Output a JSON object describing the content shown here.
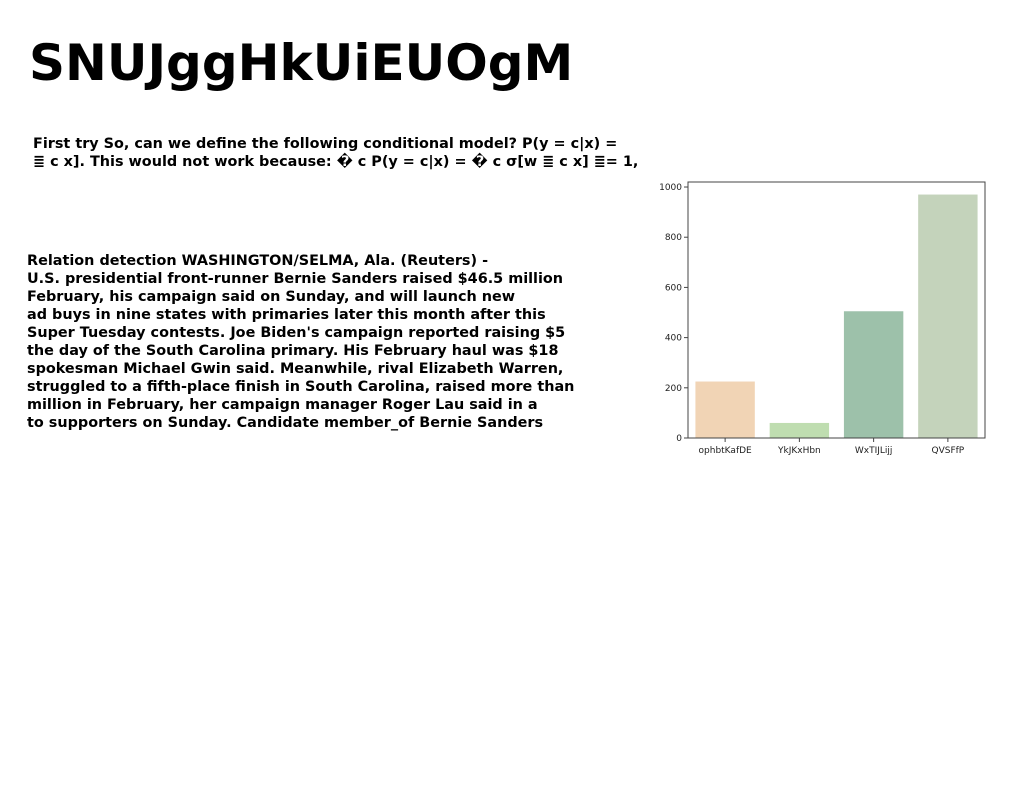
{
  "title": "SNUJggHkUiEUOgM",
  "paragraph1": {
    "lines": [
      "First try So, can we define the following conditional model? P(y = c|x) =",
      "≣ c x]. This would not work because: � c P(y = c|x) = � c σ[w ≣ c x] ≣= 1,"
    ]
  },
  "paragraph2": {
    "lines": [
      "Relation detection WASHINGTON/SELMA, Ala. (Reuters) -",
      "U.S. presidential front-runner Bernie Sanders raised $46.5 million",
      "February, his campaign said on Sunday, and will launch new",
      "ad buys in nine states with primaries later this month after this",
      "Super Tuesday contests. Joe Biden's campaign reported raising $5",
      "the day of the South Carolina primary. His February haul was $18",
      "spokesman Michael Gwin said. Meanwhile, rival Elizabeth Warren,",
      "struggled to a fifth-place finish in South Carolina, raised more than",
      "million in February, her campaign manager Roger Lau said in a",
      "to supporters on Sunday. Candidate member_of Bernie Sanders"
    ]
  },
  "chart_data": {
    "type": "bar",
    "categories": [
      "ophbtKafDE",
      "YkJKxHbn",
      "WxTIJLijj",
      "QVSFfP"
    ],
    "values": [
      225,
      60,
      505,
      970
    ],
    "colors": [
      "#f1d4b5",
      "#bfddb0",
      "#9dc1aa",
      "#c4d3bb"
    ],
    "title": "",
    "xlabel": "",
    "ylabel": "",
    "ylim": [
      0,
      1020
    ],
    "yticks": [
      0,
      200,
      400,
      600,
      800,
      1000
    ],
    "grid": false
  }
}
